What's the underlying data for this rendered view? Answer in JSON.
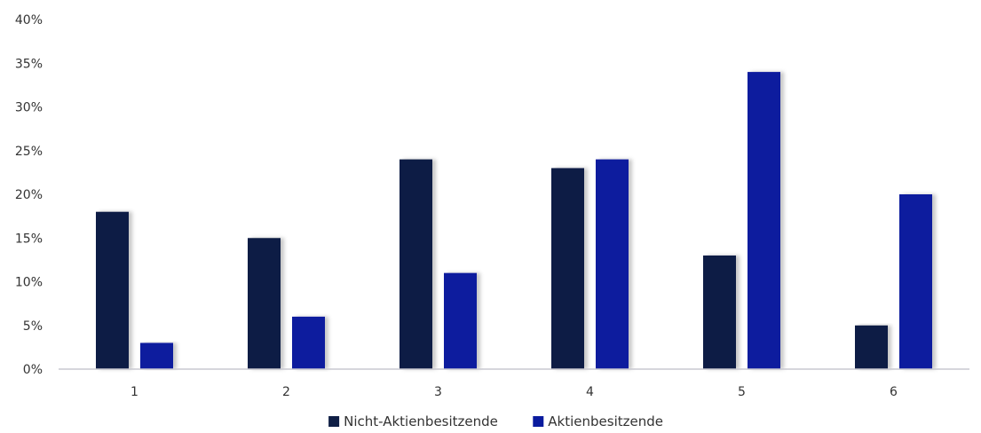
{
  "chart_data": {
    "type": "bar",
    "categories": [
      "1",
      "2",
      "3",
      "4",
      "5",
      "6"
    ],
    "series": [
      {
        "name": "Nicht-Aktienbesitzende",
        "values": [
          18,
          15,
          24,
          23,
          13,
          5
        ],
        "color": "#0f1f45"
      },
      {
        "name": "Aktienbesitzende",
        "values": [
          3,
          6,
          11,
          24,
          34,
          20
        ],
        "color": "#0a1b9e"
      }
    ],
    "ylim": [
      0,
      40
    ],
    "yticks": [
      "0%",
      "5%",
      "10%",
      "15%",
      "20%",
      "25%",
      "30%",
      "35%",
      "40%"
    ],
    "ytick_values": [
      0,
      5,
      10,
      15,
      20,
      25,
      30,
      35,
      40
    ],
    "grid": false,
    "legend_position": "bottom-center"
  }
}
